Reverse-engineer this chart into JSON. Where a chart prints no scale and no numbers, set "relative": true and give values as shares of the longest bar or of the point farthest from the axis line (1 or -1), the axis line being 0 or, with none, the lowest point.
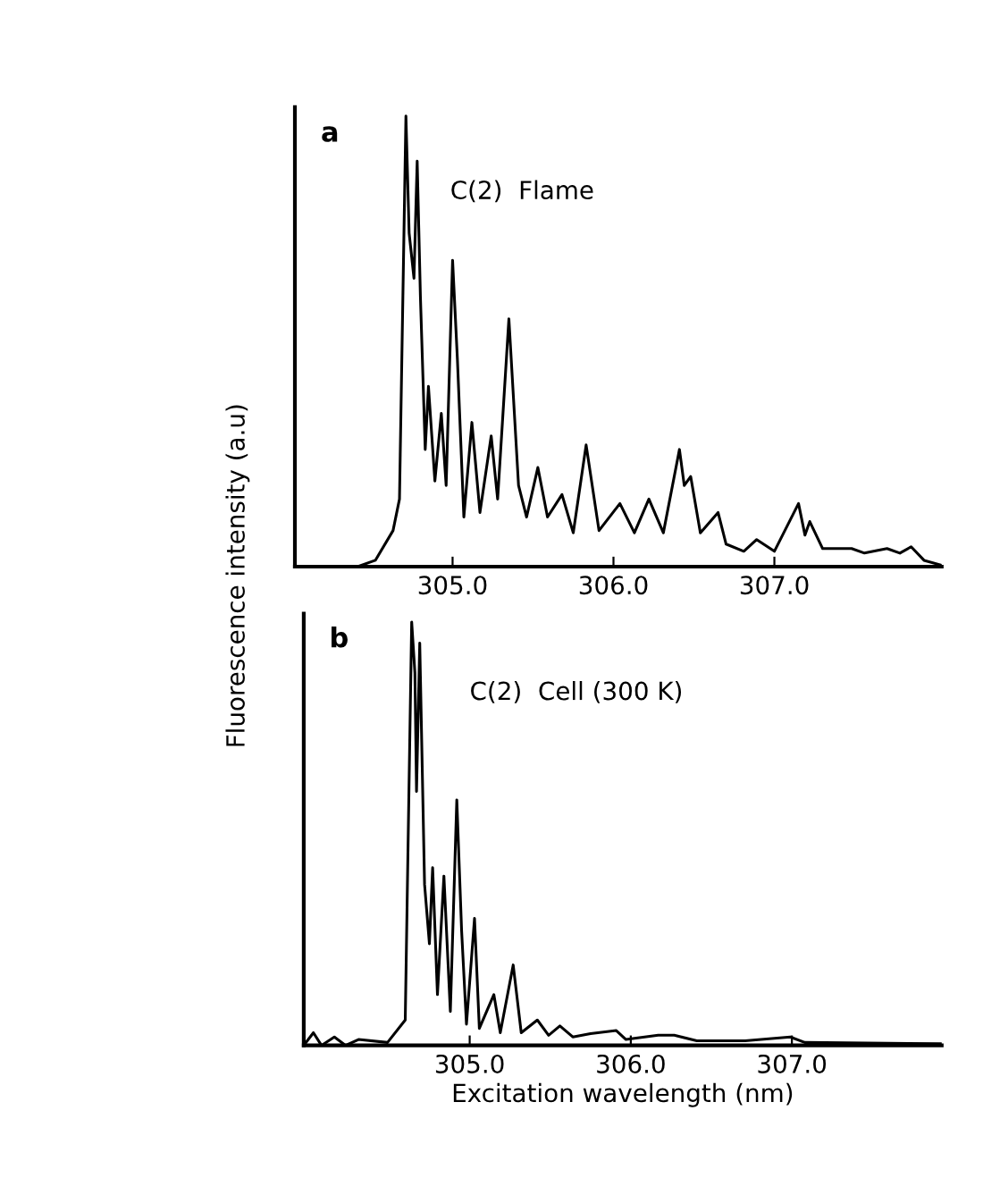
{
  "chart_data": [
    {
      "type": "line",
      "relative": true,
      "title": "a",
      "ylabel": "Fluorescence intensity (a.u)",
      "annotations": [
        "C(2)  Flame"
      ],
      "xlim": [
        304.02,
        308.04
      ],
      "xticks": [
        {
          "value": 305.0,
          "label": "305.0"
        },
        {
          "value": 306.0,
          "label": "306.0"
        },
        {
          "value": 307.0,
          "label": "307.0"
        }
      ],
      "grid": false,
      "marker": "none",
      "line_style": "solid",
      "series": [
        {
          "color": "#000000",
          "x": [
            304.02,
            304.41,
            304.52,
            304.63,
            304.67,
            304.71,
            304.73,
            304.76,
            304.78,
            304.8,
            304.83,
            304.85,
            304.89,
            304.93,
            304.96,
            305.0,
            305.03,
            305.07,
            305.12,
            305.17,
            305.24,
            305.28,
            305.35,
            305.41,
            305.46,
            305.53,
            305.59,
            305.68,
            305.75,
            305.83,
            305.91,
            306.04,
            306.13,
            306.22,
            306.31,
            306.41,
            306.44,
            306.48,
            306.54,
            306.65,
            306.7,
            306.81,
            306.89,
            307.0,
            307.15,
            307.19,
            307.22,
            307.3,
            307.48,
            307.56,
            307.7,
            307.78,
            307.85,
            307.93,
            308.04
          ],
          "values": [
            0,
            0,
            0.014,
            0.08,
            0.15,
            1.0,
            0.74,
            0.64,
            0.9,
            0.6,
            0.26,
            0.4,
            0.19,
            0.34,
            0.18,
            0.68,
            0.46,
            0.11,
            0.32,
            0.12,
            0.29,
            0.15,
            0.55,
            0.18,
            0.11,
            0.22,
            0.11,
            0.16,
            0.075,
            0.27,
            0.08,
            0.14,
            0.075,
            0.15,
            0.075,
            0.26,
            0.18,
            0.2,
            0.075,
            0.12,
            0.05,
            0.034,
            0.06,
            0.034,
            0.14,
            0.07,
            0.1,
            0.04,
            0.04,
            0.03,
            0.04,
            0.03,
            0.044,
            0.014,
            0.003
          ]
        }
      ]
    },
    {
      "type": "line",
      "relative": true,
      "title": "b",
      "xlabel": "Excitation wavelength (nm)",
      "annotations": [
        "C(2)  Cell (300 K)"
      ],
      "xlim": [
        303.97,
        307.93
      ],
      "xticks": [
        {
          "value": 305.0,
          "label": "305.0"
        },
        {
          "value": 306.0,
          "label": "306.0"
        },
        {
          "value": 307.0,
          "label": "307.0"
        }
      ],
      "grid": false,
      "marker": "none",
      "line_style": "solid",
      "series": [
        {
          "color": "#000000",
          "x": [
            303.97,
            304.03,
            304.08,
            304.16,
            304.23,
            304.31,
            304.49,
            304.6,
            304.64,
            304.66,
            304.67,
            304.69,
            304.72,
            304.75,
            304.77,
            304.8,
            304.84,
            304.88,
            304.92,
            304.95,
            304.98,
            305.03,
            305.06,
            305.15,
            305.19,
            305.27,
            305.32,
            305.42,
            305.49,
            305.56,
            305.64,
            305.75,
            305.91,
            305.97,
            306.17,
            306.27,
            306.41,
            306.71,
            306.99,
            307.08,
            307.93
          ],
          "values": [
            0,
            0.03,
            0,
            0.02,
            0,
            0.014,
            0.007,
            0.06,
            1.0,
            0.88,
            0.6,
            0.95,
            0.38,
            0.24,
            0.42,
            0.12,
            0.4,
            0.08,
            0.58,
            0.27,
            0.05,
            0.3,
            0.04,
            0.12,
            0.03,
            0.19,
            0.03,
            0.06,
            0.024,
            0.046,
            0.02,
            0.028,
            0.035,
            0.014,
            0.024,
            0.024,
            0.011,
            0.011,
            0.02,
            0.007,
            0.004
          ]
        }
      ]
    }
  ]
}
